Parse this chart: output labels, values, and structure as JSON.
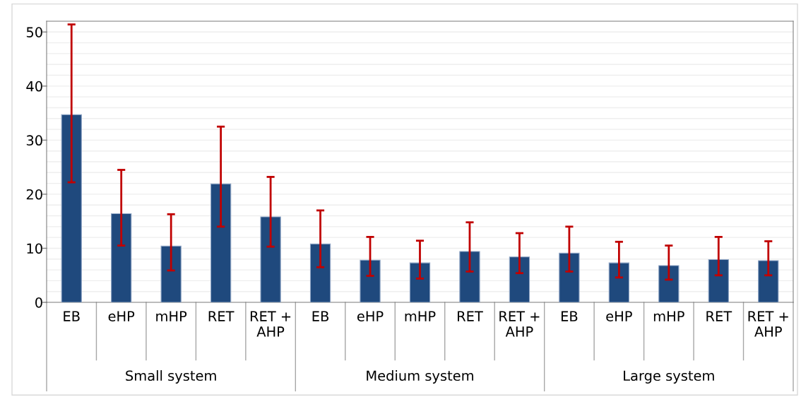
{
  "chart_data": {
    "type": "bar",
    "categories": [
      "EB",
      "eHP",
      "mHP",
      "RET",
      "RET +\nAHP",
      "EB",
      "eHP",
      "mHP",
      "RET",
      "RET +\nAHP",
      "EB",
      "eHP",
      "mHP",
      "RET",
      "RET +\nAHP"
    ],
    "values": [
      34.7,
      16.4,
      10.4,
      21.9,
      15.8,
      10.8,
      7.8,
      7.3,
      9.4,
      8.4,
      9.1,
      7.3,
      6.8,
      7.9,
      7.7
    ],
    "errors": [
      [
        22.2,
        51.4
      ],
      [
        10.5,
        24.5
      ],
      [
        5.9,
        16.3
      ],
      [
        14.0,
        32.5
      ],
      [
        10.3,
        23.2
      ],
      [
        6.5,
        17.0
      ],
      [
        4.9,
        12.1
      ],
      [
        4.4,
        11.4
      ],
      [
        5.7,
        14.8
      ],
      [
        5.4,
        12.8
      ],
      [
        5.7,
        14.0
      ],
      [
        4.6,
        11.2
      ],
      [
        4.2,
        10.5
      ],
      [
        5.0,
        12.1
      ],
      [
        5.0,
        11.3
      ]
    ],
    "color": "#1f497d",
    "annotations": [
      "Small system",
      "Medium system",
      "Large system"
    ],
    "ylim": [
      0,
      52
    ],
    "yticks": [
      0,
      {
        "value": 2,
        "label": null
      },
      {
        "value": 4,
        "label": null
      },
      {
        "value": 6,
        "label": null
      },
      {
        "value": 8,
        "label": null
      },
      10,
      {
        "value": 12,
        "label": null
      },
      {
        "value": 14,
        "label": null
      },
      {
        "value": 16,
        "label": null
      },
      {
        "value": 18,
        "label": null
      },
      20,
      {
        "value": 22,
        "label": null
      },
      {
        "value": 24,
        "label": null
      },
      {
        "value": 26,
        "label": null
      },
      {
        "value": 28,
        "label": null
      },
      30,
      {
        "value": 32,
        "label": null
      },
      {
        "value": 34,
        "label": null
      },
      {
        "value": 36,
        "label": null
      },
      {
        "value": 38,
        "label": null
      },
      40,
      {
        "value": 42,
        "label": null
      },
      {
        "value": 44,
        "label": null
      },
      {
        "value": 46,
        "label": null
      },
      {
        "value": 48,
        "label": null
      },
      50,
      {
        "value": 52,
        "label": null
      }
    ],
    "grid": "y"
  }
}
